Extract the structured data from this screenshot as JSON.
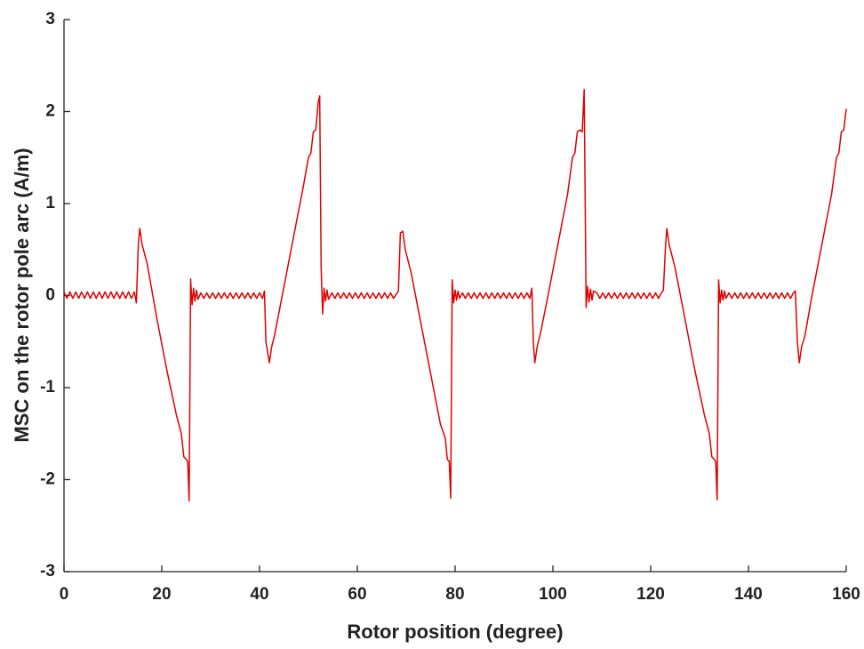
{
  "chart_data": {
    "type": "line",
    "xlabel": "Rotor position (degree)",
    "ylabel": "MSC on the rotor pole arc (A/m)",
    "color": "#e00000",
    "xlim": [
      0,
      160
    ],
    "xticks": [
      0,
      20,
      40,
      60,
      80,
      100,
      120,
      140,
      160
    ],
    "ylim": [
      -3,
      3
    ],
    "yticks": [
      -3,
      -2,
      -1,
      0,
      1,
      2,
      3
    ],
    "x": [
      0,
      0.6,
      1.2,
      1.8,
      2.4,
      3,
      3.6,
      4.2,
      4.8,
      5.4,
      6,
      6.6,
      7.2,
      7.8,
      8.4,
      9,
      9.6,
      10.2,
      10.8,
      11.4,
      12,
      12.6,
      13.2,
      13.8,
      14.4,
      14.8,
      15.2,
      15.5,
      16,
      17,
      19,
      21,
      23,
      24,
      24.5,
      25,
      25.3,
      25.6,
      25.9,
      26.2,
      26.5,
      26.8,
      27.1,
      27.4,
      28,
      28.6,
      29.2,
      29.8,
      30.4,
      31,
      31.6,
      32.2,
      32.8,
      33.4,
      34,
      34.6,
      35.2,
      35.8,
      36.4,
      37,
      37.6,
      38.2,
      38.8,
      39.4,
      40,
      40.6,
      41,
      41.3,
      42,
      42.5,
      43,
      45,
      47,
      49,
      50,
      50.5,
      51,
      51.5,
      52,
      52.3,
      52.6,
      52.9,
      53.2,
      53.5,
      53.8,
      54.1,
      54.8,
      55.4,
      56,
      56.6,
      57.2,
      57.8,
      58.4,
      59,
      59.6,
      60.2,
      60.8,
      61.4,
      62,
      62.6,
      63.2,
      63.8,
      64.4,
      65,
      65.6,
      66.2,
      66.8,
      67.4,
      68.4,
      68.8,
      69.3,
      69.8,
      71,
      73,
      75,
      77,
      78,
      78.4,
      78.8,
      79.1,
      79.4,
      79.7,
      80,
      80.3,
      80.6,
      80.9,
      81.5,
      82.1,
      82.7,
      83.3,
      83.9,
      84.5,
      85.1,
      85.7,
      86.3,
      86.9,
      87.5,
      88.1,
      88.7,
      89.3,
      89.9,
      90.5,
      91.1,
      91.7,
      92.3,
      92.9,
      93.5,
      94.1,
      94.7,
      95.3,
      95.7,
      96,
      96.3,
      96.8,
      97.5,
      99,
      101,
      103,
      104,
      104.5,
      105,
      105.5,
      106,
      106.4,
      106.8,
      107.1,
      107.4,
      107.7,
      108,
      108.3,
      109,
      109.6,
      110.2,
      110.8,
      111.4,
      112,
      112.6,
      113.2,
      113.8,
      114.4,
      115,
      115.6,
      116.2,
      116.8,
      117.4,
      118,
      118.6,
      119.2,
      119.8,
      120.4,
      121,
      121.6,
      122.2,
      122.6,
      123,
      123.3,
      123.8,
      125,
      127,
      129,
      131,
      132,
      132.5,
      133,
      133.3,
      133.6,
      133.9,
      134.2,
      134.5,
      134.8,
      135.1,
      135.4,
      136,
      136.6,
      137.2,
      137.8,
      138.4,
      139,
      139.6,
      140.2,
      140.8,
      141.4,
      142,
      142.6,
      143.2,
      143.8,
      144.4,
      145,
      145.6,
      146.2,
      146.8,
      147.4,
      148,
      148.6,
      149.2,
      149.6,
      150,
      150.4,
      150.9,
      151.5,
      153,
      155,
      157,
      158,
      158.5,
      159,
      159.5,
      160
    ],
    "values": [
      0.04,
      -0.03,
      0.04,
      -0.03,
      0.04,
      -0.03,
      0.04,
      -0.03,
      0.04,
      -0.03,
      0.04,
      -0.03,
      0.04,
      -0.03,
      0.04,
      -0.03,
      0.04,
      -0.03,
      0.04,
      -0.03,
      0.04,
      -0.03,
      0.04,
      -0.03,
      0.04,
      -0.08,
      0.55,
      0.73,
      0.55,
      0.35,
      -0.25,
      -0.8,
      -1.3,
      -1.5,
      -1.75,
      -1.78,
      -1.8,
      -2.23,
      0.18,
      -0.1,
      0.08,
      -0.06,
      0.06,
      -0.04,
      0.03,
      -0.03,
      0.03,
      -0.03,
      0.03,
      -0.03,
      0.03,
      -0.03,
      0.03,
      -0.03,
      0.03,
      -0.03,
      0.03,
      -0.03,
      0.03,
      -0.03,
      0.03,
      -0.03,
      0.03,
      -0.03,
      0.03,
      -0.03,
      0.05,
      -0.5,
      -0.73,
      -0.55,
      -0.45,
      0.1,
      0.65,
      1.2,
      1.5,
      1.55,
      1.78,
      1.8,
      2.1,
      2.17,
      0.3,
      -0.2,
      0.08,
      -0.06,
      0.06,
      -0.04,
      0.03,
      -0.03,
      0.03,
      -0.03,
      0.03,
      -0.03,
      0.03,
      -0.03,
      0.03,
      -0.03,
      0.03,
      -0.03,
      0.03,
      -0.03,
      0.03,
      -0.03,
      0.03,
      -0.03,
      0.03,
      -0.03,
      0.03,
      -0.03,
      0.05,
      0.68,
      0.7,
      0.5,
      0.25,
      -0.3,
      -0.85,
      -1.4,
      -1.55,
      -1.78,
      -1.8,
      -2.2,
      0.17,
      -0.08,
      0.06,
      -0.05,
      0.05,
      -0.03,
      0.03,
      -0.03,
      0.03,
      -0.03,
      0.03,
      -0.03,
      0.03,
      -0.03,
      0.03,
      -0.03,
      0.03,
      -0.03,
      0.03,
      -0.03,
      0.03,
      -0.03,
      0.03,
      -0.03,
      0.03,
      -0.03,
      0.03,
      -0.03,
      0.03,
      -0.03,
      0.08,
      -0.5,
      -0.73,
      -0.55,
      -0.4,
      0,
      0.55,
      1.1,
      1.5,
      1.55,
      1.78,
      1.8,
      1.78,
      2.24,
      -0.13,
      0.1,
      -0.07,
      0.07,
      -0.05,
      0.05,
      0.03,
      -0.03,
      0.03,
      -0.03,
      0.03,
      -0.03,
      0.03,
      -0.03,
      0.03,
      -0.03,
      0.03,
      -0.03,
      0.03,
      -0.03,
      0.03,
      -0.03,
      0.03,
      -0.03,
      0.03,
      -0.03,
      0.03,
      -0.03,
      0.03,
      0.06,
      0.5,
      0.73,
      0.55,
      0.3,
      -0.25,
      -0.8,
      -1.3,
      -1.5,
      -1.75,
      -1.78,
      -1.8,
      -2.22,
      0.17,
      -0.08,
      0.06,
      -0.05,
      0.05,
      -0.03,
      0.03,
      -0.03,
      0.03,
      -0.03,
      0.03,
      -0.03,
      0.03,
      -0.03,
      0.03,
      -0.03,
      0.03,
      -0.03,
      0.03,
      -0.03,
      0.03,
      -0.03,
      0.03,
      -0.03,
      0.03,
      -0.03,
      0.03,
      -0.03,
      0.03,
      0.05,
      -0.5,
      -0.73,
      -0.55,
      -0.45,
      0,
      0.55,
      1.1,
      1.5,
      1.55,
      1.78,
      1.8,
      2.03
    ]
  }
}
